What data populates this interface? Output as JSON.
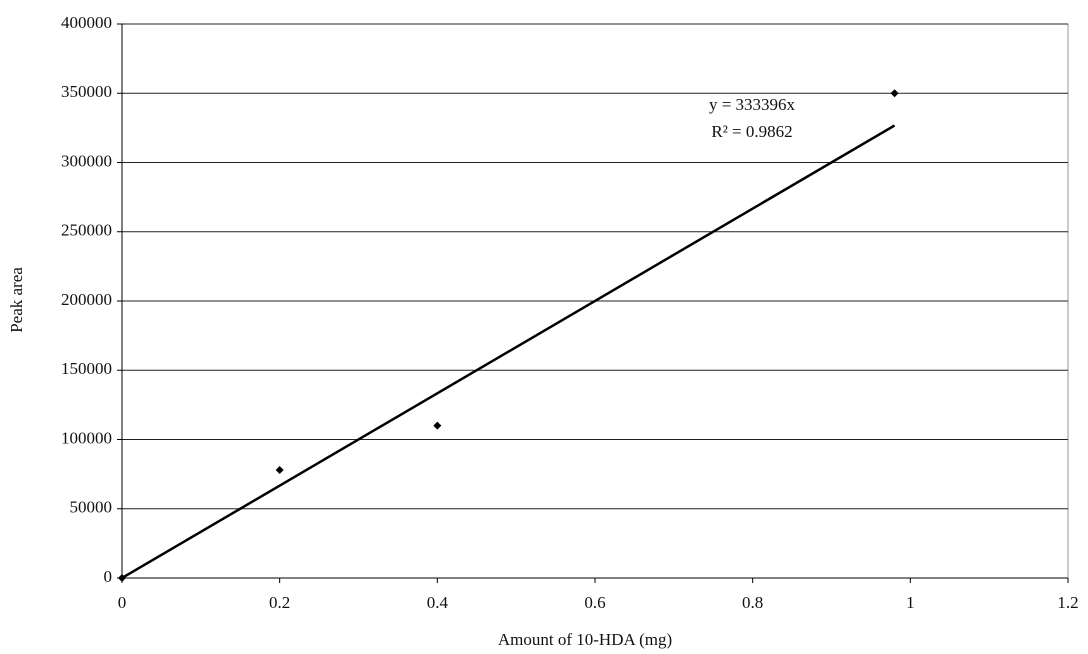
{
  "chart_data": {
    "type": "scatter",
    "x_label": "Amount of 10-HDA (mg)",
    "y_label": "Peak area",
    "x": [
      0,
      0.2,
      0.4,
      0.98
    ],
    "values": [
      0,
      78000,
      110000,
      350000
    ],
    "color": "#000000",
    "xlim": [
      0,
      1.2
    ],
    "xticks": [
      0,
      0.2,
      0.4,
      0.6,
      0.8,
      1,
      1.2
    ],
    "ylim": [
      0,
      400000
    ],
    "yticks": [
      0,
      50000,
      100000,
      150000,
      200000,
      250000,
      300000,
      350000,
      400000
    ],
    "grid": true,
    "trendline": {
      "slope": 333396,
      "equation": "y = 333396x",
      "r_squared": "R² = 0.9862"
    }
  }
}
